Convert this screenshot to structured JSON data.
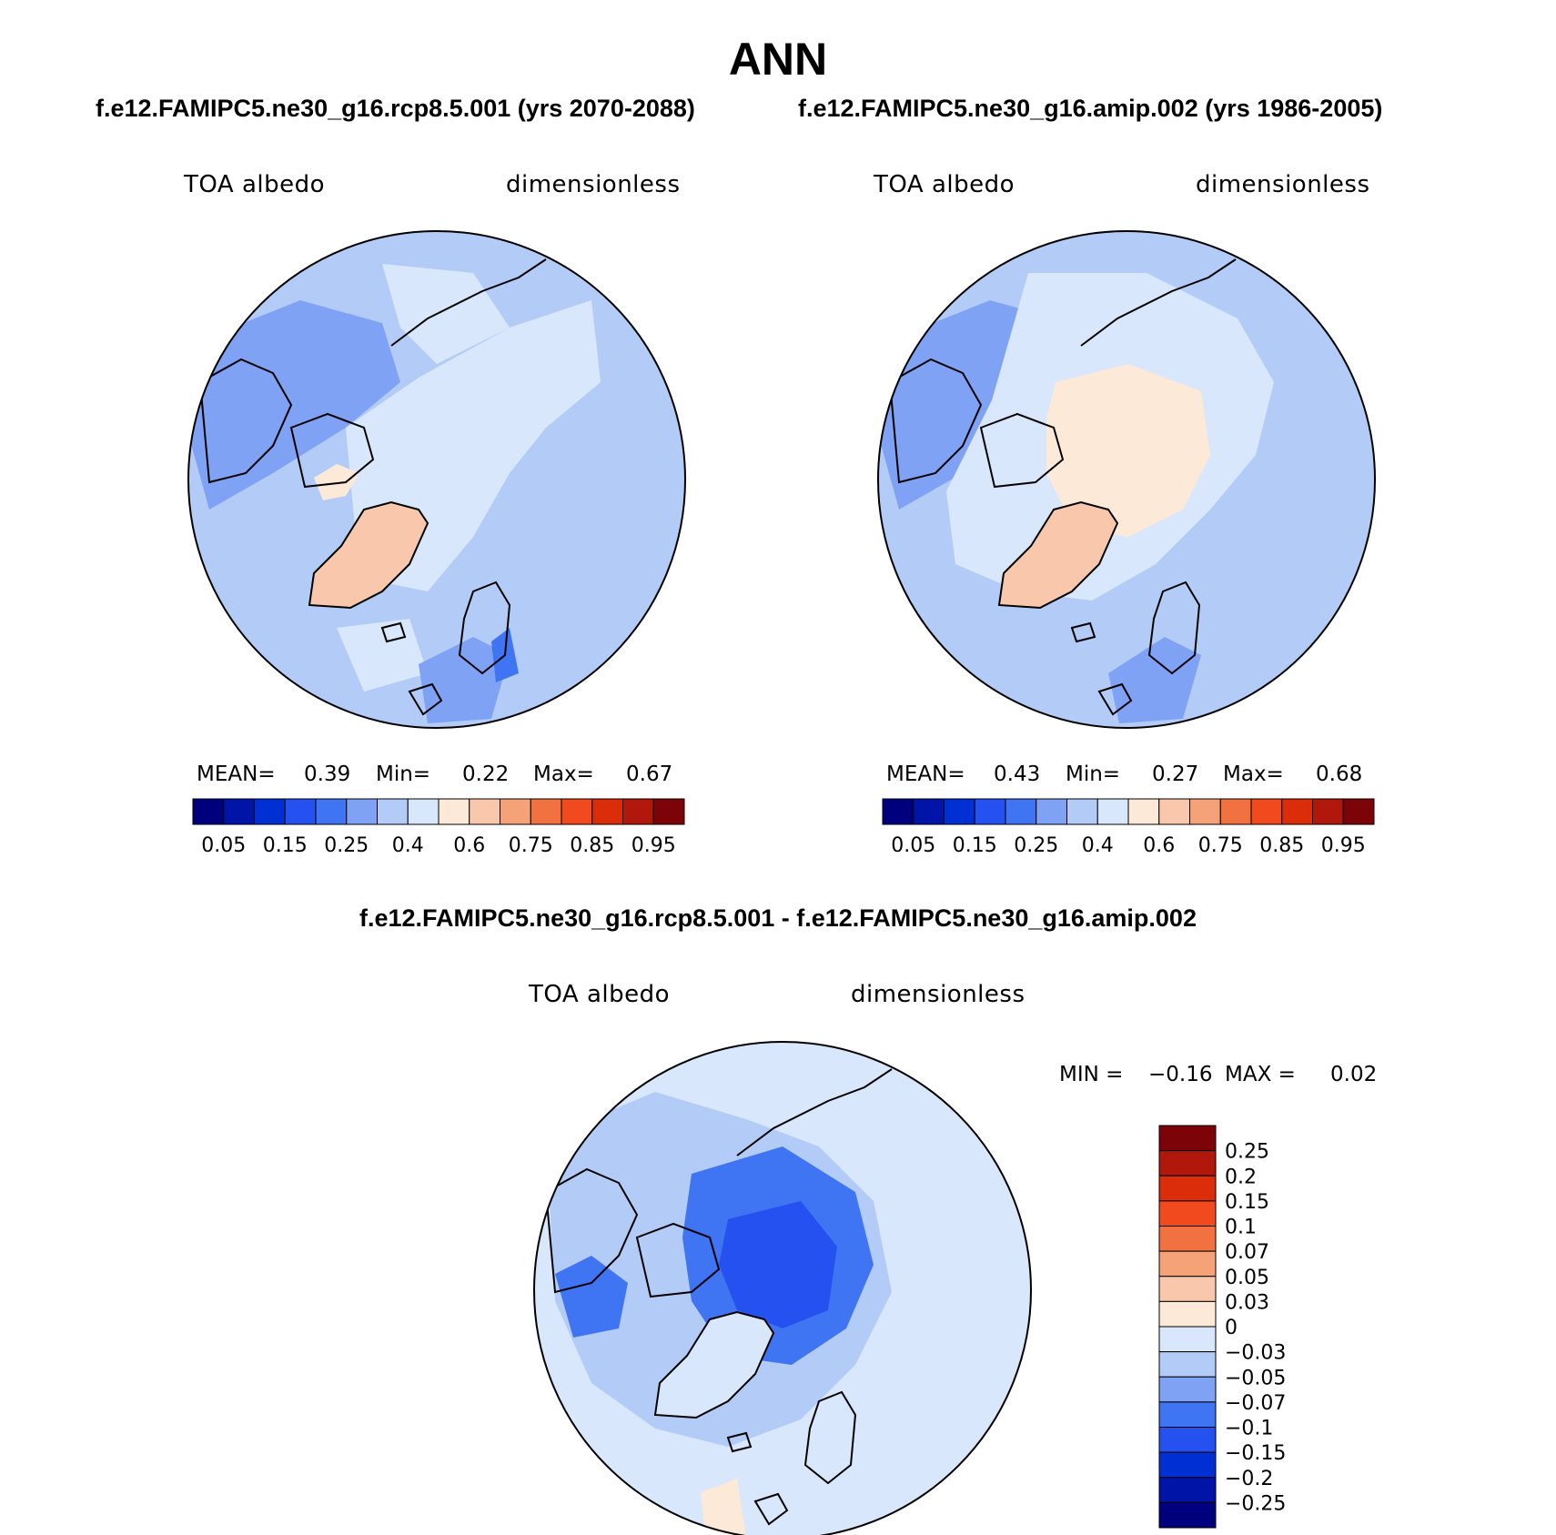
{
  "page_title": "ANN",
  "top_left_case": "f.e12.FAMIPC5.ne30_g16.rcp8.5.001 (yrs 2070-2088)",
  "top_right_case": "f.e12.FAMIPC5.ne30_g16.amip.002 (yrs 1986-2005)",
  "difference_title": "f.e12.FAMIPC5.ne30_g16.rcp8.5.001 - f.e12.FAMIPC5.ne30_g16.amip.002",
  "chart_data": [
    {
      "type": "heatmap",
      "projection": "north polar stereographic",
      "variable": "TOA albedo",
      "units": "dimensionless",
      "stats": {
        "mean_label": "MEAN=",
        "mean": "0.39",
        "min_label": "Min=",
        "min": "0.22",
        "max_label": "Max=",
        "max": "0.67"
      },
      "colorbar": {
        "orientation": "horizontal",
        "tick_labels": [
          "0.05",
          "0.15",
          "0.25",
          "0.4",
          "0.6",
          "0.75",
          "0.85",
          "0.95"
        ],
        "colors": [
          "#00007f",
          "#0015a7",
          "#0030d3",
          "#2451f0",
          "#3f74f3",
          "#7fa2f5",
          "#b3ccf7",
          "#d8e7fb",
          "#fde9d8",
          "#f9c8ac",
          "#f5a278",
          "#f27141",
          "#f04a1e",
          "#db2d0a",
          "#b1180b",
          "#7c0308"
        ]
      }
    },
    {
      "type": "heatmap",
      "projection": "north polar stereographic",
      "variable": "TOA albedo",
      "units": "dimensionless",
      "stats": {
        "mean_label": "MEAN=",
        "mean": "0.43",
        "min_label": "Min=",
        "min": "0.27",
        "max_label": "Max=",
        "max": "0.68"
      },
      "colorbar": {
        "orientation": "horizontal",
        "tick_labels": [
          "0.05",
          "0.15",
          "0.25",
          "0.4",
          "0.6",
          "0.75",
          "0.85",
          "0.95"
        ],
        "colors": [
          "#00007f",
          "#0015a7",
          "#0030d3",
          "#2451f0",
          "#3f74f3",
          "#7fa2f5",
          "#b3ccf7",
          "#d8e7fb",
          "#fde9d8",
          "#f9c8ac",
          "#f5a278",
          "#f27141",
          "#f04a1e",
          "#db2d0a",
          "#b1180b",
          "#7c0308"
        ]
      }
    },
    {
      "type": "heatmap",
      "projection": "north polar stereographic",
      "variable": "TOA albedo",
      "units": "dimensionless",
      "stats": {
        "min_label": "MIN =",
        "min": "−0.16",
        "max_label": "MAX =",
        "max": "0.02"
      },
      "colorbar": {
        "orientation": "vertical",
        "tick_labels": [
          "0.25",
          "0.2",
          "0.15",
          "0.1",
          "0.07",
          "0.05",
          "0.03",
          "0",
          "−0.03",
          "−0.05",
          "−0.07",
          "−0.1",
          "−0.15",
          "−0.2",
          "−0.25"
        ],
        "colors": [
          "#7c0308",
          "#b1180b",
          "#db2d0a",
          "#f04a1e",
          "#f27141",
          "#f5a278",
          "#f9c8ac",
          "#fde9d8",
          "#d8e7fb",
          "#b3ccf7",
          "#7fa2f5",
          "#3f74f3",
          "#2451f0",
          "#0030d3",
          "#0015a7",
          "#00007f"
        ]
      }
    }
  ]
}
